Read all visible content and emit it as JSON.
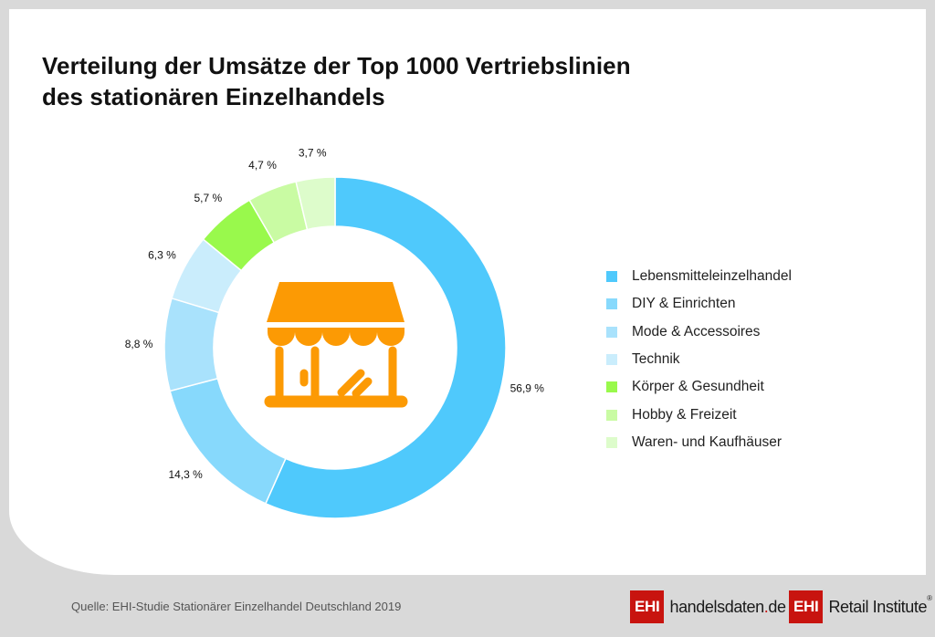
{
  "title": {
    "line1": "Verteilung der Umsätze der Top 1000 Vertriebslinien",
    "line2": "des stationären Einzelhandels"
  },
  "chart_data": {
    "type": "pie",
    "variant": "donut",
    "title": "Verteilung der Umsätze der Top 1000 Vertriebslinien des stationären Einzelhandels",
    "unit": "%",
    "start": "top",
    "direction": "clockwise",
    "legend_position": "right",
    "center_icon": "storefront-icon",
    "categories": [
      "Lebensmitteleinzelhandel",
      "DIY & Einrichten",
      "Mode & Accessoires",
      "Technik",
      "Körper & Gesundheit",
      "Hobby & Freizeit",
      "Waren- und Kaufhäuser"
    ],
    "values": [
      56.9,
      14.3,
      8.8,
      6.3,
      5.7,
      4.7,
      3.7
    ],
    "labels": [
      "56,9 %",
      "14,3 %",
      "8,8 %",
      "6,3 %",
      "5,7 %",
      "4,7 %",
      "3,7 %"
    ],
    "colors": [
      "#4fc9fc",
      "#87d9fc",
      "#a9e2fc",
      "#caedfc",
      "#99f94c",
      "#c9fba3",
      "#ddfccb"
    ]
  },
  "colors": {
    "icon": "#fc9a04",
    "background": "#d9d9d9",
    "card": "#ffffff",
    "brand_red": "#c8140f"
  },
  "footer": {
    "source": "Quelle: EHI-Studie Stationärer Einzelhandel Deutschland 2019",
    "logo1_box": "EHI",
    "logo1_text_a": "handelsdaten",
    "logo1_dot": ".",
    "logo1_text_b": "de",
    "logo2_box": "EHI",
    "logo2_text": "Retail Institute",
    "logo2_reg": "®"
  }
}
